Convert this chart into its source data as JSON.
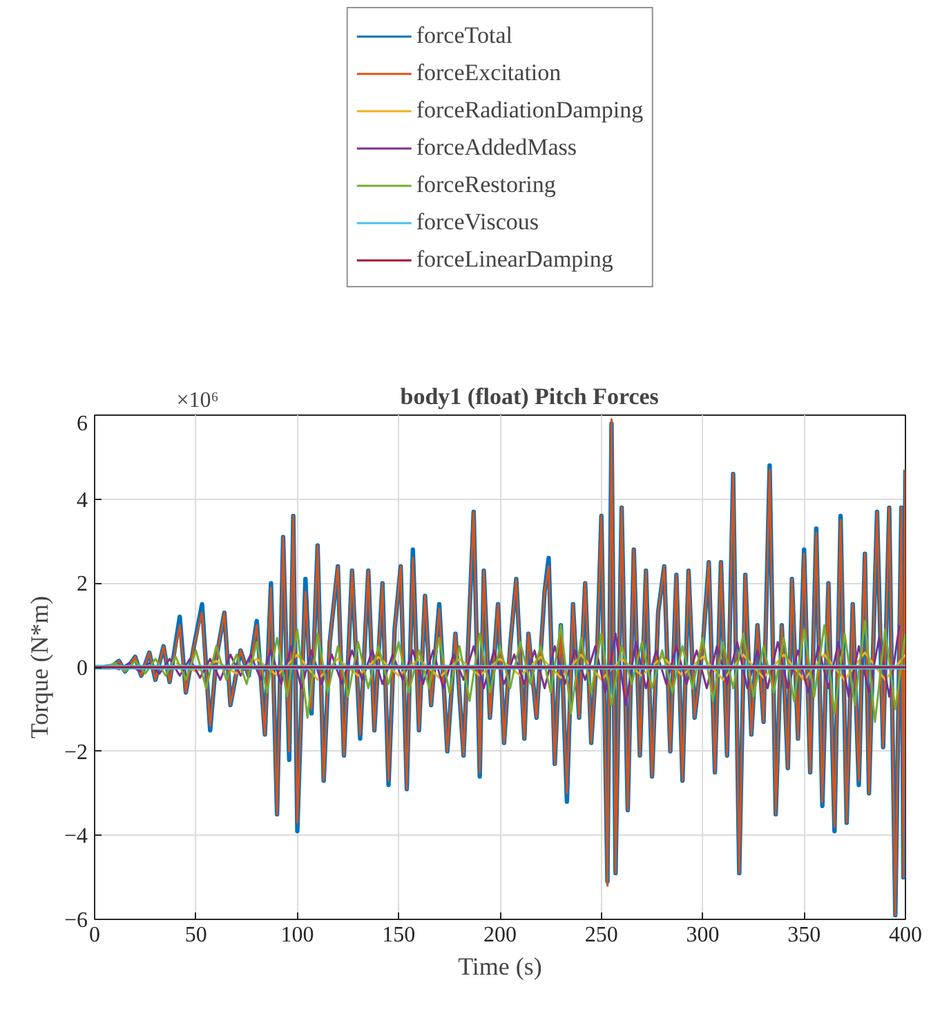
{
  "chart_data": {
    "type": "line",
    "title": "body1 (float) Pitch Forces",
    "xlabel": "Time (s)",
    "ylabel": "Torque (N*m)",
    "annotations": [
      "×10⁶"
    ],
    "xlim": [
      0,
      400
    ],
    "xticks": [
      0,
      50,
      100,
      150,
      200,
      250,
      300,
      350,
      400
    ],
    "ylim": [
      -6,
      6
    ],
    "yticks": [
      -6,
      -4,
      -2,
      0,
      2,
      4,
      6
    ],
    "grid": true,
    "legend": "top",
    "line_style": "solid",
    "marker": "none",
    "series": [
      {
        "name": "forceTotal",
        "color": "#0072bd",
        "x": [
          0,
          8,
          12,
          15,
          20,
          23,
          27,
          30,
          34,
          37,
          42,
          45,
          49,
          53,
          57,
          60,
          64,
          67,
          72,
          76,
          80,
          84,
          87,
          90,
          93,
          96,
          98,
          100,
          104,
          107,
          110,
          113,
          116,
          120,
          123,
          127,
          131,
          135,
          138,
          142,
          145,
          148,
          151,
          154,
          157,
          160,
          163,
          166,
          170,
          174,
          178,
          182,
          187,
          190,
          192,
          195,
          199,
          202,
          205,
          208,
          212,
          214,
          218,
          222,
          224,
          227,
          230,
          233,
          236,
          239,
          242,
          245,
          248,
          250,
          253,
          255,
          257,
          260,
          263,
          266,
          269,
          272,
          275,
          278,
          281,
          284,
          287,
          290,
          293,
          296,
          300,
          303,
          306,
          309,
          312,
          315,
          318,
          321,
          324,
          327,
          330,
          333,
          336,
          339,
          342,
          344,
          347,
          350,
          353,
          356,
          359,
          362,
          365,
          368,
          371,
          374,
          377,
          380,
          382,
          386,
          389,
          392,
          395,
          398,
          399,
          400
        ],
        "values": [
          0,
          0,
          0.15,
          -0.1,
          0.25,
          -0.2,
          0.35,
          -0.3,
          0.5,
          -0.35,
          1.2,
          -0.6,
          0.5,
          1.5,
          -1.5,
          0.2,
          1.3,
          -0.9,
          0.4,
          -0.2,
          1.1,
          -1.6,
          2.0,
          -3.5,
          3.1,
          -2.2,
          3.6,
          -3.9,
          2.1,
          -1.1,
          2.9,
          -2.7,
          0.6,
          2.4,
          -2.1,
          2.3,
          -1.7,
          2.3,
          -1.5,
          2.0,
          -2.8,
          0.9,
          2.4,
          -2.9,
          2.8,
          -1.5,
          1.7,
          -0.9,
          1.5,
          -2.0,
          0.8,
          -2.1,
          3.7,
          -2.6,
          2.3,
          -1.2,
          1.5,
          -1.8,
          0.5,
          2.1,
          -1.7,
          0.8,
          -1.2,
          1.8,
          2.6,
          -2.3,
          1.0,
          -3.2,
          1.5,
          -1.2,
          2.0,
          -1.8,
          0.5,
          3.6,
          -5.1,
          5.8,
          -4.9,
          3.8,
          -3.4,
          2.8,
          -2.1,
          2.3,
          -2.6,
          1.3,
          2.4,
          -2.0,
          2.2,
          -2.7,
          2.3,
          -1.2,
          0.5,
          2.5,
          -2.5,
          2.5,
          -2.1,
          4.6,
          -4.9,
          2.2,
          -1.6,
          1.0,
          -1.3,
          4.8,
          -3.5,
          1.0,
          -2.4,
          2.1,
          -1.7,
          2.8,
          -2.5,
          3.3,
          -3.3,
          2.0,
          -3.9,
          3.6,
          -3.7,
          1.5,
          -2.8,
          2.7,
          -3.0,
          3.7,
          -1.9,
          3.8,
          -5.9,
          3.8,
          -5.0,
          4.7
        ]
      },
      {
        "name": "forceExcitation",
        "color": "#d95319",
        "x": [
          0,
          8,
          12,
          15,
          20,
          23,
          27,
          30,
          34,
          37,
          42,
          45,
          49,
          53,
          57,
          60,
          64,
          67,
          72,
          76,
          80,
          84,
          87,
          90,
          93,
          96,
          98,
          100,
          104,
          107,
          110,
          113,
          116,
          120,
          123,
          127,
          131,
          135,
          138,
          142,
          145,
          148,
          151,
          154,
          157,
          160,
          163,
          166,
          170,
          174,
          178,
          182,
          187,
          190,
          192,
          195,
          199,
          202,
          205,
          208,
          212,
          214,
          218,
          222,
          224,
          227,
          230,
          233,
          236,
          239,
          242,
          245,
          248,
          250,
          253,
          255,
          257,
          260,
          263,
          266,
          269,
          272,
          275,
          278,
          281,
          284,
          287,
          290,
          293,
          296,
          300,
          303,
          306,
          309,
          312,
          315,
          318,
          321,
          324,
          327,
          330,
          333,
          336,
          339,
          342,
          344,
          347,
          350,
          353,
          356,
          359,
          362,
          365,
          368,
          371,
          374,
          377,
          380,
          382,
          386,
          389,
          392,
          395,
          398,
          399,
          400
        ],
        "values": [
          0,
          0,
          0.15,
          -0.1,
          0.25,
          -0.2,
          0.35,
          -0.3,
          0.5,
          -0.35,
          1.0,
          -0.6,
          0.5,
          1.3,
          -1.4,
          0.2,
          1.3,
          -0.9,
          0.4,
          -0.2,
          1.0,
          -1.6,
          1.9,
          -3.5,
          3.1,
          -2.0,
          3.6,
          -3.7,
          1.8,
          -1.0,
          2.9,
          -2.7,
          0.6,
          2.4,
          -2.1,
          2.3,
          -1.6,
          2.3,
          -1.5,
          2.0,
          -2.7,
          0.9,
          2.4,
          -2.9,
          2.6,
          -1.5,
          1.7,
          -0.9,
          1.4,
          -2.0,
          0.8,
          -2.1,
          3.7,
          -2.5,
          2.3,
          -1.2,
          1.5,
          -1.8,
          0.5,
          2.1,
          -1.7,
          0.8,
          -1.2,
          1.8,
          2.4,
          -2.3,
          1.0,
          -3.0,
          1.5,
          -1.2,
          2.0,
          -1.8,
          0.5,
          3.6,
          -5.2,
          5.9,
          -4.9,
          3.8,
          -3.4,
          2.8,
          -2.1,
          2.3,
          -2.6,
          1.3,
          2.4,
          -2.0,
          2.2,
          -2.7,
          2.3,
          -1.2,
          0.5,
          2.5,
          -2.5,
          2.5,
          -2.1,
          4.6,
          -4.9,
          2.2,
          -1.6,
          1.0,
          -1.3,
          4.7,
          -3.5,
          1.0,
          -2.4,
          2.1,
          -1.7,
          2.7,
          -2.5,
          3.2,
          -3.2,
          2.0,
          -3.8,
          3.5,
          -3.7,
          1.5,
          -2.7,
          2.7,
          -3.0,
          3.7,
          -1.9,
          3.8,
          -5.9,
          3.8,
          -5.0,
          4.7
        ]
      },
      {
        "name": "forceRadiationDamping",
        "color": "#edb120",
        "x": [
          40,
          50,
          60,
          70,
          80,
          90,
          100,
          110,
          120,
          130,
          140,
          150,
          160,
          170,
          180,
          190,
          200,
          210,
          220,
          230,
          240,
          250,
          260,
          270,
          280,
          290,
          300,
          310,
          320,
          330,
          340,
          350,
          360,
          370,
          380,
          390,
          400
        ],
        "values": [
          0.1,
          -0.1,
          0.15,
          -0.15,
          0.2,
          -0.2,
          0.3,
          -0.3,
          0.2,
          -0.2,
          0.25,
          -0.2,
          0.2,
          -0.25,
          0.2,
          -0.2,
          0.2,
          -0.2,
          0.25,
          -0.25,
          0.3,
          -0.3,
          0.2,
          -0.2,
          0.25,
          -0.2,
          0.25,
          -0.3,
          0.3,
          -0.25,
          0.3,
          -0.3,
          0.3,
          -0.3,
          0.35,
          -0.3,
          0.3
        ]
      },
      {
        "name": "forceAddedMass",
        "color": "#7e2f8e",
        "x": [
          2,
          7,
          12,
          17,
          22,
          27,
          32,
          37,
          42,
          47,
          52,
          57,
          62,
          67,
          72,
          77,
          82,
          87,
          92,
          97,
          102,
          107,
          112,
          117,
          122,
          127,
          132,
          137,
          142,
          147,
          152,
          157,
          162,
          167,
          172,
          177,
          182,
          187,
          192,
          197,
          202,
          207,
          212,
          217,
          222,
          227,
          232,
          237,
          242,
          247,
          252,
          257,
          262,
          267,
          272,
          277,
          282,
          287,
          292,
          297,
          302,
          307,
          312,
          317,
          322,
          327,
          332,
          337,
          342,
          347,
          352,
          357,
          362,
          367,
          372,
          377,
          382,
          387,
          392,
          397
        ],
        "values": [
          0,
          0.05,
          -0.05,
          0.1,
          -0.1,
          0.1,
          -0.15,
          0.2,
          -0.2,
          0.2,
          -0.25,
          0.2,
          -0.3,
          0.3,
          -0.2,
          0.3,
          -0.3,
          0.4,
          -0.4,
          0.5,
          -0.5,
          0.4,
          -0.4,
          0.3,
          -0.4,
          0.4,
          -0.3,
          0.4,
          -0.4,
          0.3,
          -0.3,
          0.4,
          -0.4,
          0.4,
          -0.5,
          0.3,
          -0.3,
          0.5,
          -0.5,
          0.4,
          -0.4,
          0.3,
          -0.4,
          0.4,
          -0.5,
          0.5,
          -0.4,
          0.4,
          -0.3,
          0.5,
          -0.6,
          0.8,
          -0.9,
          0.6,
          -0.5,
          0.4,
          -0.4,
          0.5,
          -0.4,
          0.4,
          -0.5,
          0.5,
          -0.4,
          0.6,
          -0.5,
          0.4,
          -0.5,
          0.6,
          -0.5,
          0.4,
          -0.6,
          0.5,
          -0.5,
          0.6,
          -0.7,
          0.5,
          -0.6,
          0.7,
          -0.7,
          1.0
        ]
      },
      {
        "name": "forceRestoring",
        "color": "#77ac30",
        "x": [
          0,
          5,
          10,
          15,
          20,
          25,
          30,
          35,
          40,
          45,
          50,
          55,
          60,
          65,
          70,
          75,
          80,
          85,
          90,
          95,
          100,
          105,
          110,
          115,
          120,
          125,
          130,
          135,
          140,
          145,
          150,
          155,
          160,
          165,
          170,
          175,
          180,
          185,
          190,
          195,
          200,
          205,
          210,
          215,
          220,
          225,
          230,
          235,
          240,
          245,
          250,
          255,
          260,
          265,
          270,
          275,
          280,
          285,
          290,
          295,
          300,
          305,
          310,
          315,
          320,
          325,
          330,
          335,
          340,
          345,
          350,
          355,
          360,
          365,
          370,
          375,
          380,
          385,
          390,
          395,
          400
        ],
        "values": [
          0,
          0,
          0.1,
          -0.1,
          0.15,
          -0.15,
          0.2,
          -0.2,
          0.25,
          -0.3,
          0.4,
          -0.5,
          0.5,
          -0.3,
          0.3,
          -0.4,
          0.6,
          -0.6,
          0.7,
          -0.7,
          0.9,
          -1.2,
          0.8,
          -0.6,
          0.5,
          -0.7,
          0.6,
          -0.5,
          0.5,
          -0.4,
          0.6,
          -0.6,
          0.4,
          -0.5,
          0.7,
          -0.6,
          0.5,
          -0.8,
          0.8,
          -0.6,
          0.5,
          -0.5,
          0.6,
          -0.4,
          0.5,
          -0.6,
          1.0,
          -1.1,
          0.7,
          -0.6,
          0.8,
          -0.9,
          0.5,
          -0.4,
          0.6,
          -0.5,
          0.4,
          -0.6,
          0.5,
          -0.5,
          0.7,
          -0.8,
          0.6,
          -0.5,
          0.8,
          -0.7,
          0.5,
          -0.6,
          0.7,
          -0.8,
          0.9,
          -0.7,
          1.0,
          -1.1,
          0.8,
          -0.9,
          1.1,
          -1.3,
          0.9,
          -1.0,
          0.8
        ]
      },
      {
        "name": "forceViscous",
        "color": "#4dbeee",
        "x": [
          0,
          400
        ],
        "values": [
          0,
          0
        ]
      },
      {
        "name": "forceLinearDamping",
        "color": "#a2142f",
        "x": [
          0,
          400
        ],
        "values": [
          0,
          0
        ]
      }
    ]
  }
}
